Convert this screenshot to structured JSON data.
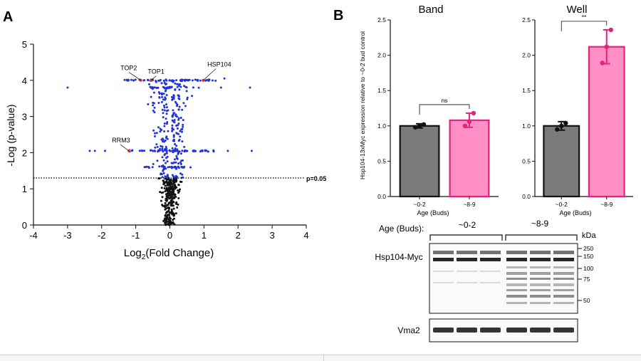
{
  "figure": {
    "panel_a_letter": "A",
    "panel_b_letter": "B",
    "volcano": {
      "xlabel_main": "Log",
      "xlabel_sub": "2",
      "xlabel_rest": "(Fold Change)",
      "ylabel": "-Log (p-value)",
      "threshold_label": "p=0.05",
      "genes": [
        {
          "name": "TOP2",
          "x": -0.85,
          "y": 4.0
        },
        {
          "name": "TOP1",
          "x": -0.55,
          "y": 4.0
        },
        {
          "name": "HSP104",
          "x": 0.98,
          "y": 4.0
        },
        {
          "name": "RRM3",
          "x": -1.2,
          "y": 2.05
        }
      ]
    },
    "bar_y_axis_label": "Hsp104-13xMyc expression relative to ~0-2 bud control",
    "band_title": "Band",
    "well_title": "Well",
    "band_sig": "ns",
    "well_sig": "**",
    "bar_xlabel": "Age (Buds)",
    "western": {
      "age_label": "Age (Buds):",
      "group1": "~0-2",
      "group2": "~8-9",
      "kda_label": "kDa",
      "markers": [
        "250",
        "150",
        "100",
        "75",
        "50"
      ],
      "hsp_label": "Hsp104-Myc",
      "vma_label": "Vma2"
    }
  },
  "chart_data": [
    {
      "type": "scatter",
      "title": "",
      "xlabel": "Log2(Fold Change)",
      "ylabel": "-Log (p-value)",
      "xlim": [
        -4,
        4
      ],
      "ylim": [
        0,
        5
      ],
      "xticks": [
        "-4",
        "-3",
        "-2",
        "-1",
        "0",
        "1",
        "2",
        "3",
        "4"
      ],
      "yticks": [
        "0",
        "1",
        "2",
        "3",
        "4",
        "5"
      ],
      "threshold": 1.3,
      "threshold_label": "p=0.05",
      "annotations": [
        "TOP2",
        "TOP1",
        "HSP104",
        "RRM3"
      ]
    },
    {
      "type": "bar",
      "title": "Band",
      "categories": [
        "~0-2",
        "~8-9"
      ],
      "values": [
        1.0,
        1.08
      ],
      "errors": [
        0.03,
        0.1
      ],
      "points": [
        [
          0.98,
          1.0,
          1.02
        ],
        [
          1.0,
          1.06,
          1.18
        ]
      ],
      "ylim": [
        0,
        2.5
      ],
      "yticks": [
        "0.0",
        "0.5",
        "1.0",
        "1.5",
        "2.0",
        "2.5"
      ],
      "xlabel": "Age (Buds)",
      "ylabel": "Hsp104-13xMyc expression relative to ~0-2 bud control",
      "significance": "ns",
      "colors": [
        "#7a7a7a",
        "#ff8fc4"
      ]
    },
    {
      "type": "bar",
      "title": "Well",
      "categories": [
        "~0-2",
        "~8-9"
      ],
      "values": [
        1.0,
        2.12
      ],
      "errors": [
        0.06,
        0.24
      ],
      "points": [
        [
          0.95,
          1.0,
          1.04
        ],
        [
          1.89,
          2.12,
          2.36
        ]
      ],
      "ylim": [
        0,
        2.5
      ],
      "yticks": [
        "0.0",
        "0.5",
        "1.0",
        "1.5",
        "2.0",
        "2.5"
      ],
      "xlabel": "Age (Buds)",
      "ylabel": "",
      "significance": "**",
      "colors": [
        "#7a7a7a",
        "#ff8fc4"
      ]
    }
  ]
}
